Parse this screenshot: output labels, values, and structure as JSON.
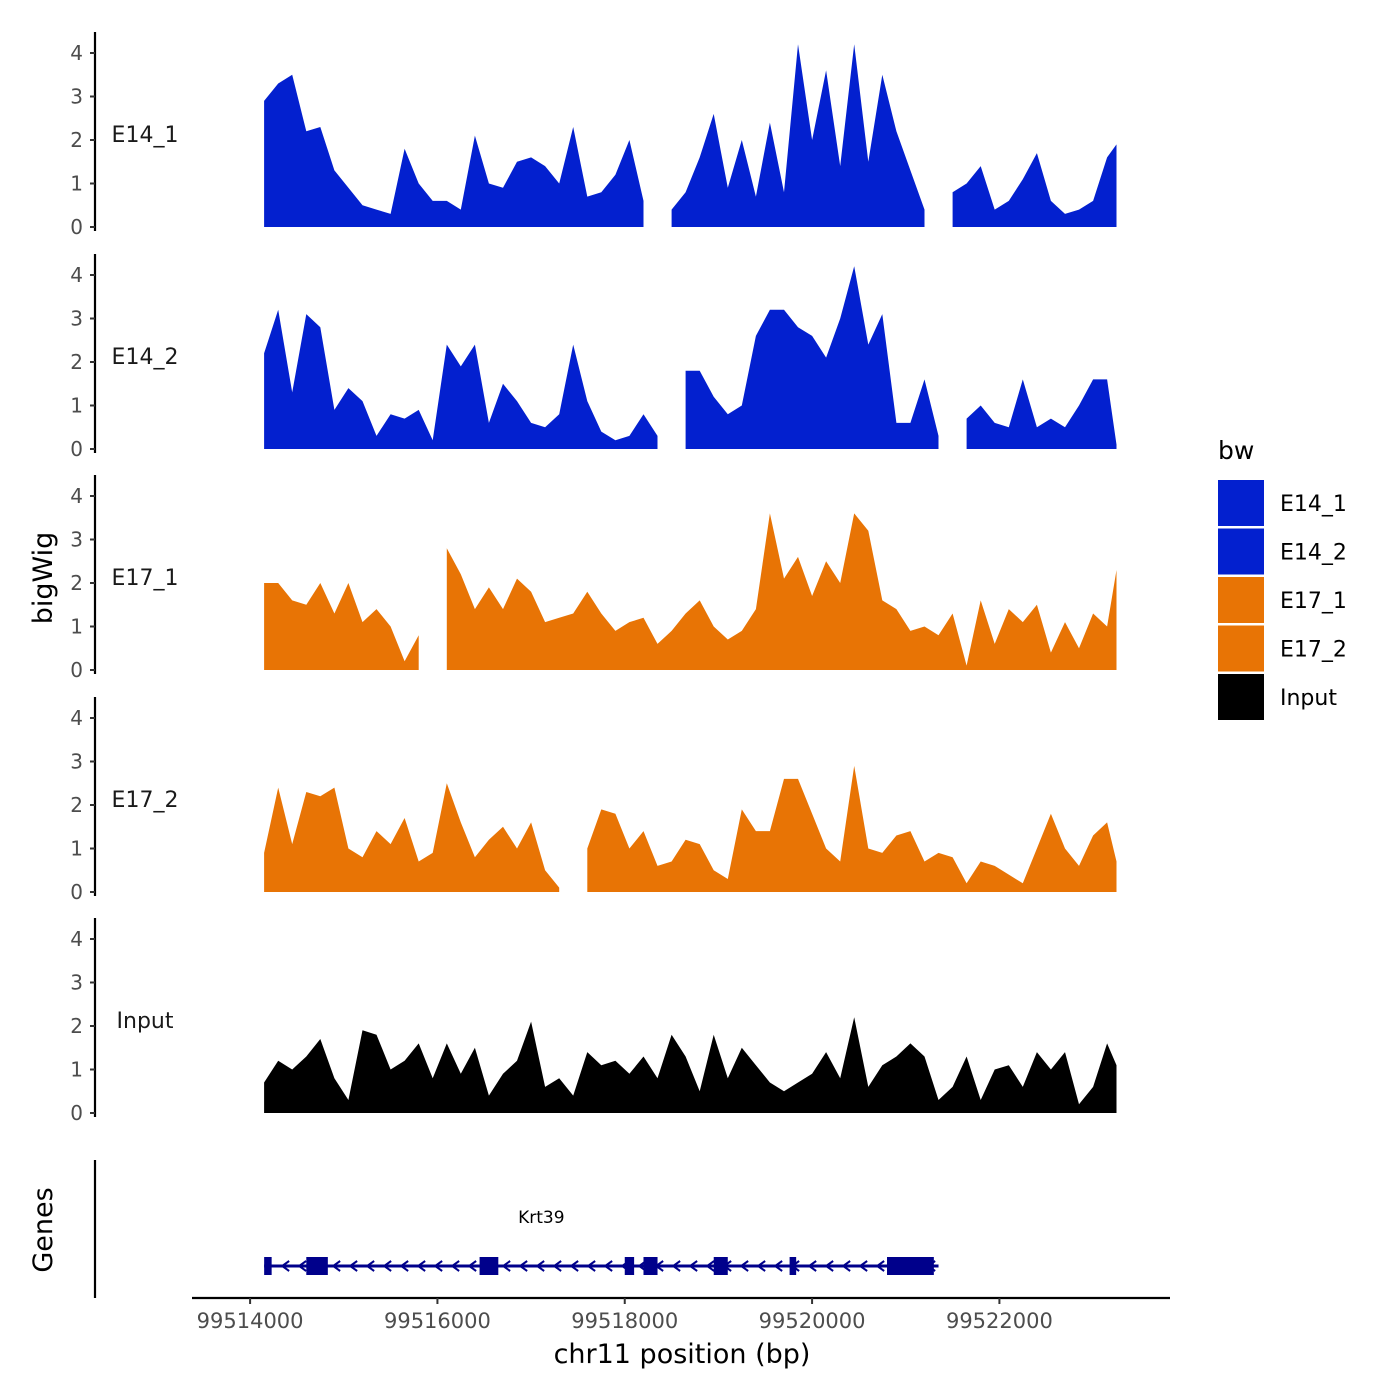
{
  "chart_data": {
    "type": "area",
    "title": "",
    "ylabel": "bigWig",
    "xlabel": "chr11 position (bp)",
    "genes_label": "Genes",
    "xlim": [
      99513700,
      99523800
    ],
    "ylim": [
      0,
      4.5
    ],
    "x_ticks": [
      99514000,
      99516000,
      99518000,
      99520000,
      99522000
    ],
    "x_tick_labels": [
      "99514000",
      "99516000",
      "99518000",
      "99520000",
      "99522000"
    ],
    "y_ticks": [
      0,
      1,
      2,
      3,
      4
    ],
    "y_tick_labels": [
      "0",
      "1",
      "2",
      "3",
      "4"
    ],
    "legend": {
      "title": "bw",
      "position": "right",
      "entries": [
        {
          "label": "E14_1",
          "color": "#0320CF"
        },
        {
          "label": "E14_2",
          "color": "#0320CF"
        },
        {
          "label": "E17_1",
          "color": "#E87405"
        },
        {
          "label": "E17_2",
          "color": "#E87405"
        },
        {
          "label": "Input",
          "color": "#000000"
        }
      ]
    },
    "x": [
      99514150,
      99514300,
      99514450,
      99514600,
      99514750,
      99514900,
      99515050,
      99515200,
      99515350,
      99515500,
      99515650,
      99515800,
      99515950,
      99516100,
      99516250,
      99516400,
      99516550,
      99516700,
      99516850,
      99517000,
      99517150,
      99517300,
      99517450,
      99517600,
      99517750,
      99517900,
      99518050,
      99518200,
      99518350,
      99518500,
      99518650,
      99518800,
      99518950,
      99519100,
      99519250,
      99519400,
      99519550,
      99519700,
      99519850,
      99520000,
      99520150,
      99520300,
      99520450,
      99520600,
      99520750,
      99520900,
      99521050,
      99521200,
      99521350,
      99521500,
      99521650,
      99521800,
      99521950,
      99522100,
      99522250,
      99522400,
      99522550,
      99522700,
      99522850,
      99523000,
      99523150,
      99523250
    ],
    "series": [
      {
        "name": "E14_1",
        "color": "#0320CF",
        "values": [
          2.9,
          3.3,
          3.5,
          2.2,
          2.3,
          1.3,
          0.9,
          0.5,
          0.4,
          0.3,
          1.8,
          1.0,
          0.6,
          0.6,
          0.4,
          2.1,
          1.0,
          0.9,
          1.5,
          1.6,
          1.4,
          1.0,
          2.3,
          0.7,
          0.8,
          1.2,
          2.0,
          0.6,
          null,
          0.4,
          0.8,
          1.6,
          2.6,
          0.9,
          2.0,
          0.7,
          2.4,
          0.8,
          4.2,
          2.0,
          3.6,
          1.4,
          4.2,
          1.5,
          3.5,
          2.2,
          1.3,
          0.4,
          null,
          0.8,
          1.0,
          1.4,
          0.4,
          0.6,
          1.1,
          1.7,
          0.6,
          0.3,
          0.4,
          0.6,
          1.6,
          1.9
        ]
      },
      {
        "name": "E14_2",
        "color": "#0320CF",
        "values": [
          2.2,
          3.2,
          1.3,
          3.1,
          2.8,
          0.9,
          1.4,
          1.1,
          0.3,
          0.8,
          0.7,
          0.9,
          0.2,
          2.4,
          1.9,
          2.4,
          0.6,
          1.5,
          1.1,
          0.6,
          0.5,
          0.8,
          2.4,
          1.1,
          0.4,
          0.2,
          0.3,
          0.8,
          0.3,
          null,
          1.8,
          1.8,
          1.2,
          0.8,
          1.0,
          2.6,
          3.2,
          3.2,
          2.8,
          2.6,
          2.1,
          3.0,
          4.2,
          2.4,
          3.1,
          0.6,
          0.6,
          1.6,
          0.3,
          null,
          0.7,
          1.0,
          0.6,
          0.5,
          1.6,
          0.5,
          0.7,
          0.5,
          1.0,
          1.6,
          1.6,
          0.1
        ]
      },
      {
        "name": "E17_1",
        "color": "#E87405",
        "values": [
          2.0,
          2.0,
          1.6,
          1.5,
          2.0,
          1.3,
          2.0,
          1.1,
          1.4,
          1.0,
          0.2,
          0.8,
          null,
          2.8,
          2.2,
          1.4,
          1.9,
          1.4,
          2.1,
          1.8,
          1.1,
          1.2,
          1.3,
          1.8,
          1.3,
          0.9,
          1.1,
          1.2,
          0.6,
          0.9,
          1.3,
          1.6,
          1.0,
          0.7,
          0.9,
          1.4,
          3.6,
          2.1,
          2.6,
          1.7,
          2.5,
          2.0,
          3.6,
          3.2,
          1.6,
          1.4,
          0.9,
          1.0,
          0.8,
          1.3,
          0.1,
          1.6,
          0.6,
          1.4,
          1.1,
          1.5,
          0.4,
          1.1,
          0.5,
          1.3,
          1.0,
          2.3
        ]
      },
      {
        "name": "E17_2",
        "color": "#E87405",
        "values": [
          0.9,
          2.4,
          1.1,
          2.3,
          2.2,
          2.4,
          1.0,
          0.8,
          1.4,
          1.1,
          1.7,
          0.7,
          0.9,
          2.5,
          1.6,
          0.8,
          1.2,
          1.5,
          1.0,
          1.6,
          0.5,
          0.1,
          null,
          1.0,
          1.9,
          1.8,
          1.0,
          1.4,
          0.6,
          0.7,
          1.2,
          1.1,
          0.5,
          0.3,
          1.9,
          1.4,
          1.4,
          2.6,
          2.6,
          1.8,
          1.0,
          0.7,
          2.9,
          1.0,
          0.9,
          1.3,
          1.4,
          0.7,
          0.9,
          0.8,
          0.2,
          0.7,
          0.6,
          0.4,
          0.2,
          1.0,
          1.8,
          1.0,
          0.6,
          1.3,
          1.6,
          0.7
        ]
      },
      {
        "name": "Input",
        "color": "#000000",
        "values": [
          0.7,
          1.2,
          1.0,
          1.3,
          1.7,
          0.8,
          0.3,
          1.9,
          1.8,
          1.0,
          1.2,
          1.6,
          0.8,
          1.6,
          0.9,
          1.5,
          0.4,
          0.9,
          1.2,
          2.1,
          0.6,
          0.8,
          0.4,
          1.4,
          1.1,
          1.2,
          0.9,
          1.3,
          0.8,
          1.8,
          1.3,
          0.5,
          1.8,
          0.8,
          1.5,
          1.1,
          0.7,
          0.5,
          0.7,
          0.9,
          1.4,
          0.8,
          2.2,
          0.6,
          1.1,
          1.3,
          1.6,
          1.3,
          0.3,
          0.6,
          1.3,
          0.3,
          1.0,
          1.1,
          0.6,
          1.4,
          1.0,
          1.4,
          0.2,
          0.6,
          1.6,
          1.1
        ]
      }
    ],
    "gene": {
      "name": "Krt39",
      "strand": "-",
      "start": 99514150,
      "end": 99521350,
      "exons": [
        [
          99514150,
          99514230
        ],
        [
          99514600,
          99514830
        ],
        [
          99516450,
          99516650
        ],
        [
          99518000,
          99518100
        ],
        [
          99518200,
          99518350
        ],
        [
          99518950,
          99519100
        ],
        [
          99519760,
          99519830
        ],
        [
          99520800,
          99521300
        ]
      ]
    }
  }
}
